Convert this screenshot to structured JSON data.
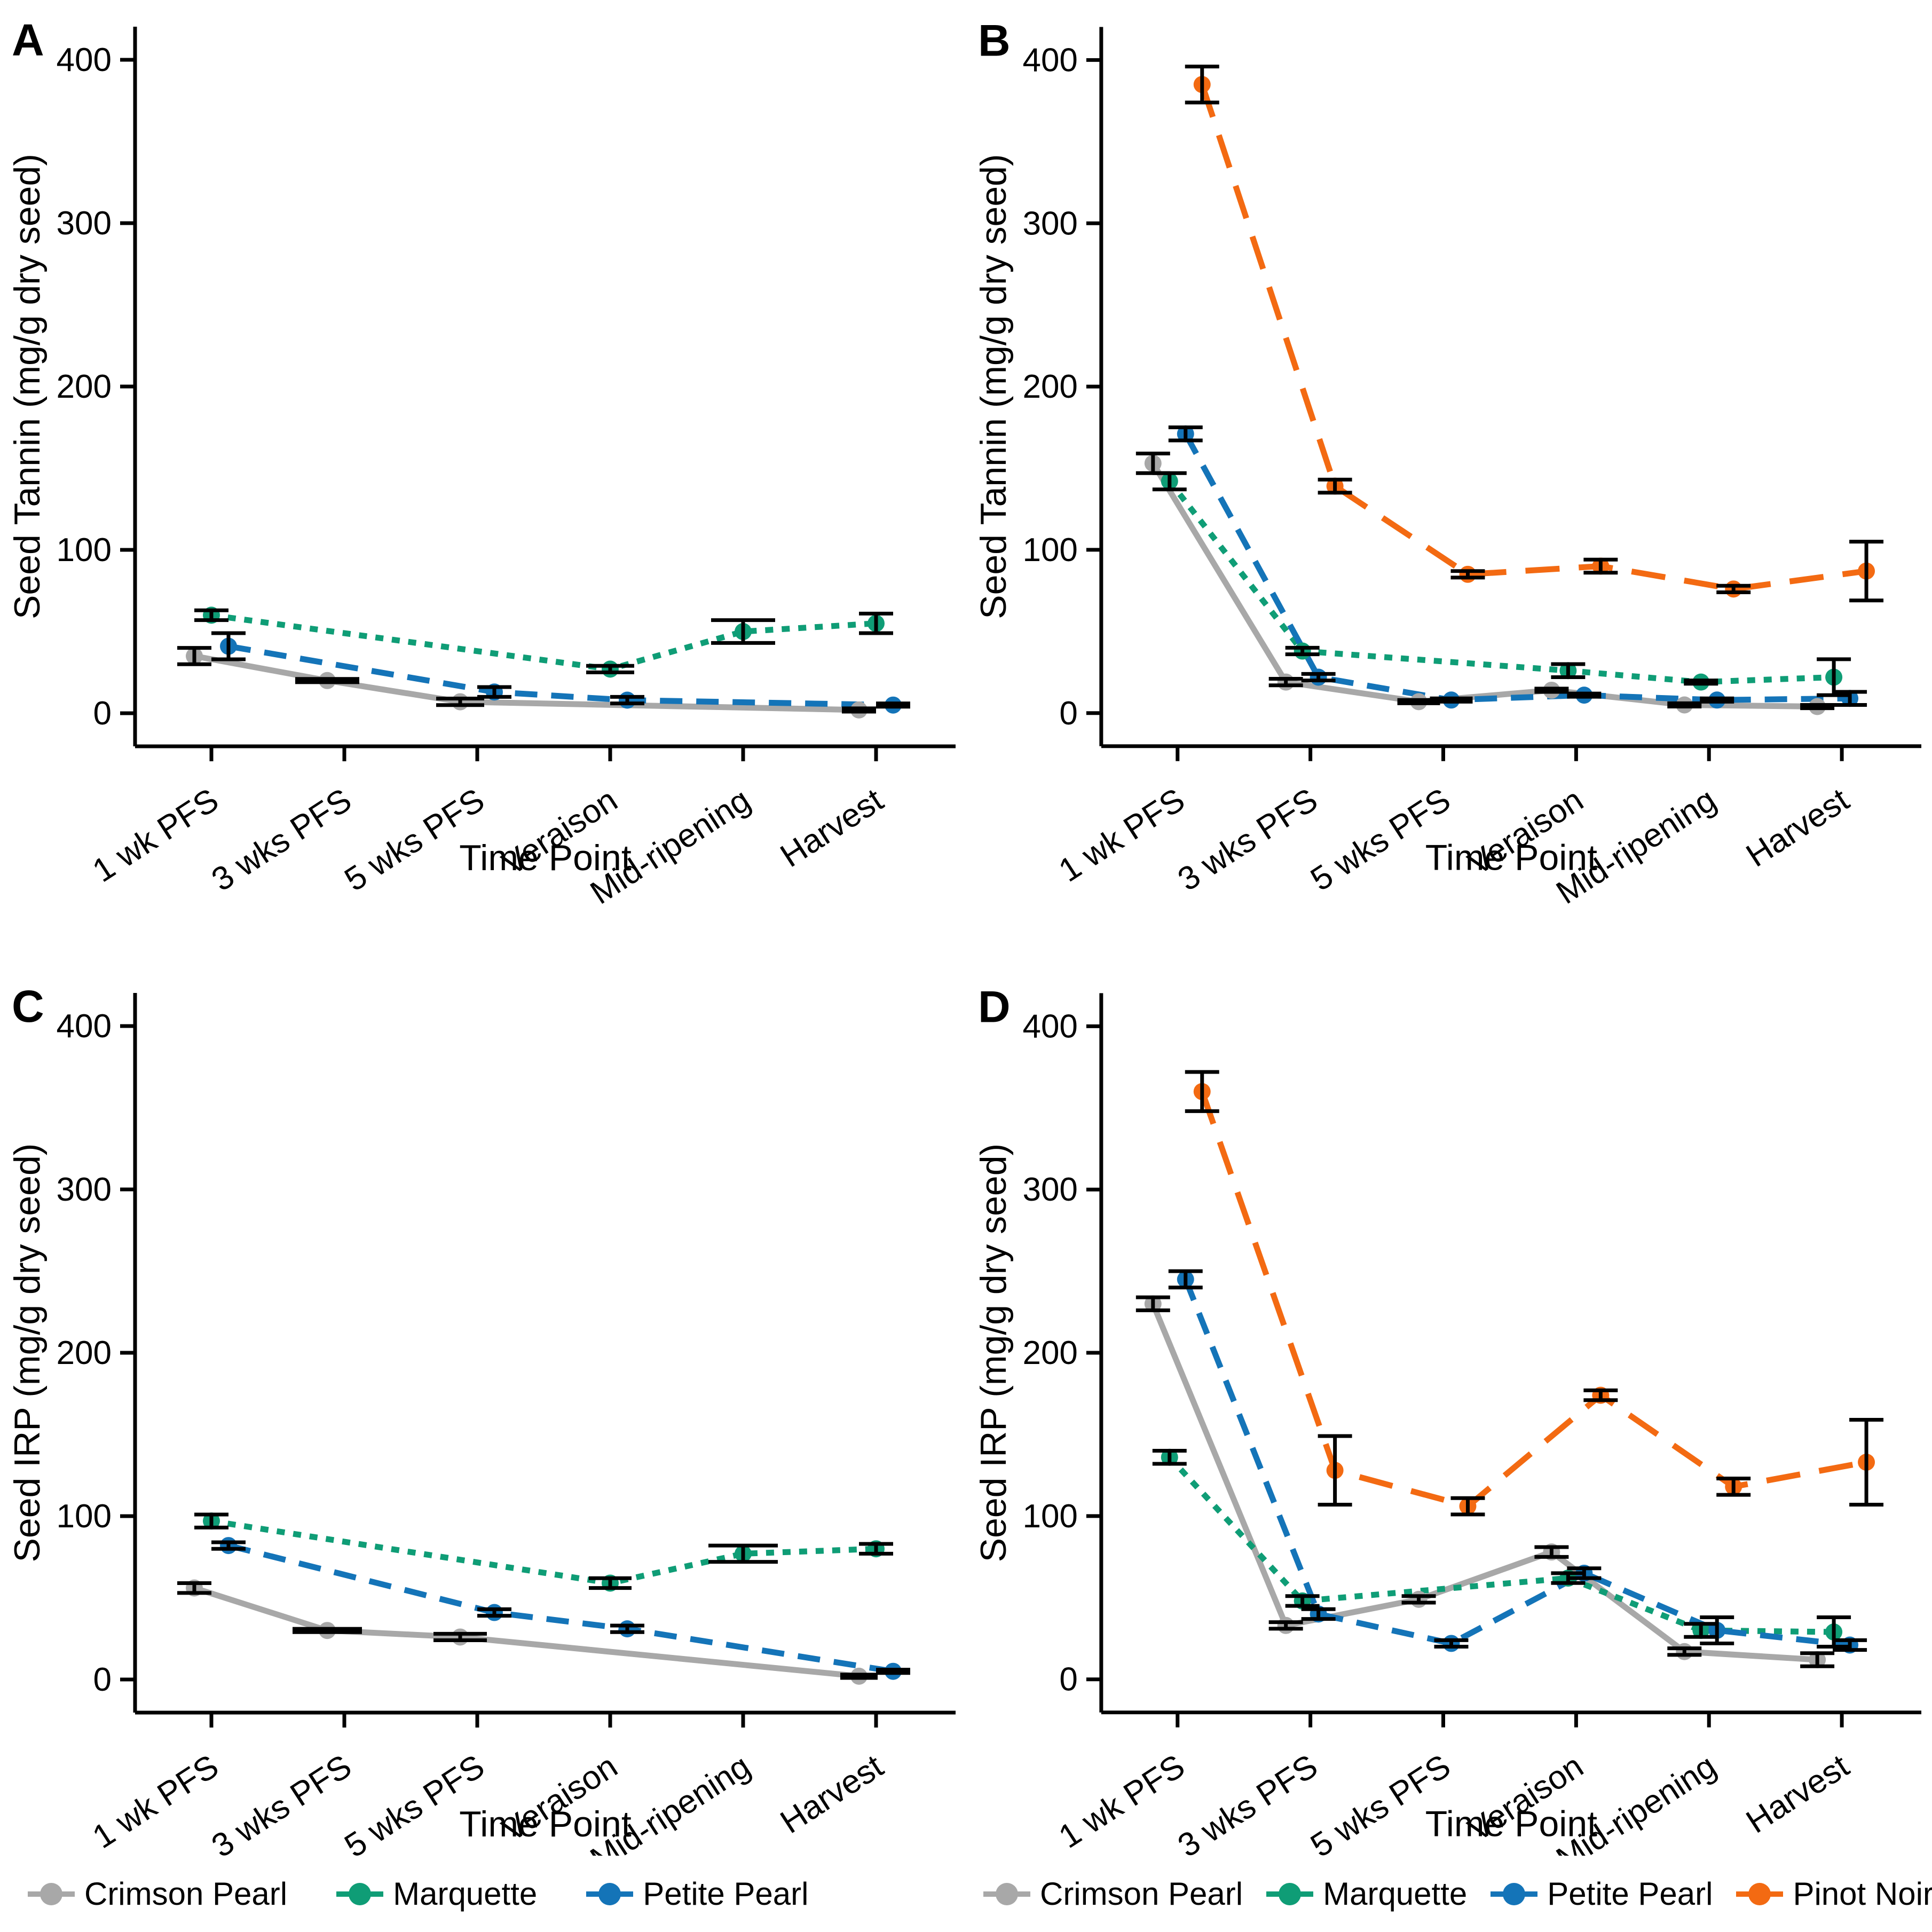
{
  "figure_title": "",
  "series_styles": {
    "Crimson Pearl": {
      "color": "#A8A8A8",
      "dash": "solid"
    },
    "Marquette": {
      "color": "#0F9D76",
      "dash": "dotted"
    },
    "Petite Pearl": {
      "color": "#1474B8",
      "dash": "dashed"
    },
    "Pinot Noir": {
      "color": "#F36A12",
      "dash": "longdash"
    }
  },
  "axis": {
    "x_title": "Time Point",
    "y_ticks": [
      0,
      100,
      200,
      300,
      400
    ],
    "categories": [
      "1 wk PFS",
      "3 wks PFS",
      "5 wks PFS",
      "Veraison",
      "Mid-ripening",
      "Harvest"
    ]
  },
  "legends": {
    "left": [
      "Crimson Pearl",
      "Marquette",
      "Petite Pearl"
    ],
    "right": [
      "Crimson Pearl",
      "Marquette",
      "Petite Pearl",
      "Pinot Noir"
    ]
  },
  "chart_data": [
    {
      "type": "line",
      "label": "A",
      "ylabel": "Seed Tannin (mg/g dry seed)",
      "xlabel": "Time Point",
      "ylim": [
        0,
        400
      ],
      "yticks": [
        0,
        100,
        200,
        300,
        400
      ],
      "categories": [
        "1 wk PFS",
        "3 wks PFS",
        "5 wks PFS",
        "Veraison",
        "Mid-ripening",
        "Harvest"
      ],
      "series": [
        {
          "name": "Crimson Pearl",
          "values": [
            35,
            20,
            7,
            null,
            null,
            2
          ],
          "errors": [
            5,
            1,
            2,
            null,
            null,
            1
          ],
          "capw": [
            64,
            120,
            90,
            64,
            64,
            64
          ]
        },
        {
          "name": "Marquette",
          "values": [
            60,
            null,
            null,
            27,
            50,
            55
          ],
          "errors": [
            3,
            null,
            null,
            2,
            7,
            6
          ],
          "capw": [
            64,
            64,
            64,
            90,
            120,
            64
          ]
        },
        {
          "name": "Petite Pearl",
          "values": [
            41,
            null,
            13,
            8,
            null,
            5
          ],
          "errors": [
            8,
            null,
            3,
            2,
            null,
            1
          ],
          "capw": [
            64,
            64,
            64,
            64,
            64,
            64
          ]
        }
      ]
    },
    {
      "type": "line",
      "label": "B",
      "ylabel": "Seed Tannin (mg/g dry seed)",
      "xlabel": "Time Point",
      "ylim": [
        0,
        400
      ],
      "yticks": [
        0,
        100,
        200,
        300,
        400
      ],
      "categories": [
        "1 wk PFS",
        "3 wks PFS",
        "5 wks PFS",
        "Veraison",
        "Mid-ripening",
        "Harvest"
      ],
      "series": [
        {
          "name": "Crimson Pearl",
          "values": [
            153,
            19,
            7,
            14,
            5,
            4
          ],
          "errors": [
            6,
            2,
            1,
            1,
            1,
            1
          ],
          "capw": [
            64,
            64,
            80,
            64,
            64,
            64
          ]
        },
        {
          "name": "Marquette",
          "values": [
            142,
            38,
            null,
            26,
            19,
            22
          ],
          "errors": [
            5,
            2,
            null,
            4,
            1,
            11
          ],
          "capw": [
            64,
            64,
            64,
            64,
            64,
            64
          ]
        },
        {
          "name": "Petite Pearl",
          "values": [
            171,
            22,
            8,
            11,
            8,
            9
          ],
          "errors": [
            4,
            2,
            1,
            1,
            1,
            4
          ],
          "capw": [
            64,
            64,
            80,
            64,
            64,
            64
          ]
        },
        {
          "name": "Pinot Noir",
          "values": [
            385,
            139,
            85,
            90,
            76,
            87
          ],
          "errors": [
            11,
            4,
            2,
            4,
            2,
            18
          ],
          "capw": [
            64,
            64,
            64,
            64,
            64,
            64
          ]
        }
      ]
    },
    {
      "type": "line",
      "label": "C",
      "ylabel": "Seed IRP (mg/g dry seed)",
      "xlabel": "Time Point",
      "ylim": [
        0,
        400
      ],
      "yticks": [
        0,
        100,
        200,
        300,
        400
      ],
      "categories": [
        "1 wk PFS",
        "3 wks PFS",
        "5 wks PFS",
        "Veraison",
        "Mid-ripening",
        "Harvest"
      ],
      "series": [
        {
          "name": "Crimson Pearl",
          "values": [
            56,
            30,
            26,
            null,
            null,
            2
          ],
          "errors": [
            3,
            1,
            2,
            null,
            null,
            1
          ],
          "capw": [
            64,
            130,
            100,
            64,
            64,
            70
          ]
        },
        {
          "name": "Marquette",
          "values": [
            97,
            null,
            null,
            59,
            77,
            80
          ],
          "errors": [
            4,
            null,
            null,
            3,
            5,
            3
          ],
          "capw": [
            64,
            64,
            64,
            80,
            130,
            64
          ]
        },
        {
          "name": "Petite Pearl",
          "values": [
            82,
            null,
            41,
            31,
            null,
            5
          ],
          "errors": [
            2,
            null,
            2,
            2,
            null,
            1
          ],
          "capw": [
            64,
            64,
            64,
            64,
            64,
            64
          ]
        }
      ]
    },
    {
      "type": "line",
      "label": "D",
      "ylabel": "Seed IRP (mg/g dry seed)",
      "xlabel": "Time Point",
      "ylim": [
        0,
        400
      ],
      "yticks": [
        0,
        100,
        200,
        300,
        400
      ],
      "categories": [
        "1 wk PFS",
        "3 wks PFS",
        "5 wks PFS",
        "Veraison",
        "Mid-ripening",
        "Harvest"
      ],
      "series": [
        {
          "name": "Crimson Pearl",
          "values": [
            230,
            33,
            49,
            78,
            17,
            12
          ],
          "errors": [
            4,
            2,
            2,
            3,
            2,
            4
          ],
          "capw": [
            64,
            64,
            64,
            64,
            64,
            64
          ]
        },
        {
          "name": "Marquette",
          "values": [
            136,
            48,
            null,
            62,
            30,
            29
          ],
          "errors": [
            4,
            3,
            null,
            3,
            4,
            9
          ],
          "capw": [
            64,
            64,
            64,
            64,
            64,
            64
          ]
        },
        {
          "name": "Petite Pearl",
          "values": [
            245,
            40,
            22,
            65,
            30,
            21
          ],
          "errors": [
            5,
            3,
            2,
            3,
            8,
            3
          ],
          "capw": [
            64,
            64,
            64,
            64,
            64,
            64
          ]
        },
        {
          "name": "Pinot Noir",
          "values": [
            360,
            128,
            106,
            174,
            118,
            133
          ],
          "errors": [
            12,
            21,
            5,
            3,
            5,
            26
          ],
          "capw": [
            64,
            64,
            64,
            64,
            64,
            64
          ]
        }
      ]
    }
  ]
}
